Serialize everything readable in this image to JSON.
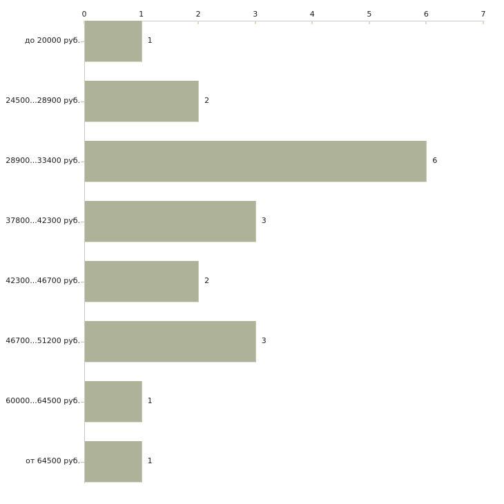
{
  "chart_data": {
    "type": "bar",
    "orientation": "horizontal",
    "title": "",
    "xlabel": "",
    "ylabel": "",
    "categories": [
      "до 20000 руб.",
      "24500...28900 руб.",
      "28900...33400 руб.",
      "37800...42300 руб.",
      "42300...46700 руб.",
      "46700...51200 руб.",
      "60000...64500 руб.",
      "от 64500 руб."
    ],
    "values": [
      1,
      2,
      6,
      3,
      2,
      3,
      1,
      1
    ],
    "value_labels": [
      "1",
      "2",
      "6",
      "3",
      "2",
      "3",
      "1",
      "1"
    ],
    "x_ticks": [
      "0",
      "1",
      "2",
      "3",
      "4",
      "5",
      "6",
      "7"
    ],
    "xlim": [
      0,
      7
    ],
    "grid": false,
    "legend_position": "none",
    "axis_position": "top",
    "colors": {
      "bar_fill": "#adb299",
      "bar_edge": "#dfe2d0",
      "axis_line": "#c9c9c9",
      "x_tick_mark": "#d9ddbb",
      "y_tick_mark": "#c2c5ab",
      "text": "#1a1a1a",
      "background": "#ffffff"
    }
  }
}
